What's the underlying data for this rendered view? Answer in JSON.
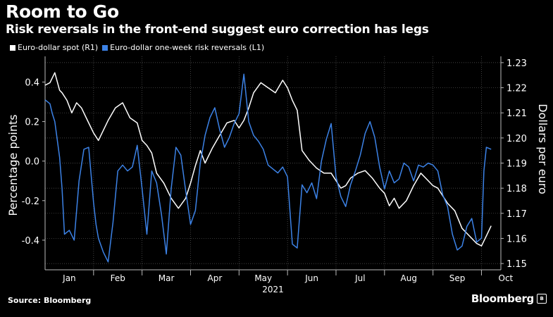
{
  "header": {
    "title": "Room to Go",
    "subtitle": "Risk reversals in the front-end suggest euro correction has legs"
  },
  "footer": {
    "source": "Source: Bloomberg",
    "brand": "Bloomberg"
  },
  "chart_data": {
    "type": "line",
    "title": "Room to Go",
    "subtitle": "Risk reversals in the front-end suggest euro correction has legs",
    "ylabel_left": "Percentage points",
    "ylabel_right": "Dollars per euro",
    "xlabel": "2021",
    "grid": true,
    "legend_position": "top-left",
    "x_range": [
      0,
      9.4
    ],
    "y_left": {
      "range": [
        -0.55,
        0.53
      ],
      "ticks": [
        -0.4,
        -0.2,
        0.0,
        0.2,
        0.4
      ],
      "tick_labels": [
        "-0.4",
        "-0.2",
        "0.0",
        "0.2",
        "0.4"
      ]
    },
    "y_right": {
      "range": [
        1.1475,
        1.2325
      ],
      "ticks": [
        1.15,
        1.16,
        1.17,
        1.18,
        1.19,
        1.2,
        1.21,
        1.22,
        1.23
      ],
      "tick_labels": [
        "1.15",
        "1.16",
        "1.17",
        "1.18",
        "1.19",
        "1.20",
        "1.21",
        "1.22",
        "1.23"
      ]
    },
    "months": [
      {
        "label": "Jan",
        "pos": 0.5
      },
      {
        "label": "Feb",
        "pos": 1.5
      },
      {
        "label": "Mar",
        "pos": 2.5
      },
      {
        "label": "Apr",
        "pos": 3.5
      },
      {
        "label": "May",
        "pos": 4.5
      },
      {
        "label": "Jun",
        "pos": 5.5
      },
      {
        "label": "Jul",
        "pos": 6.5
      },
      {
        "label": "Aug",
        "pos": 7.5
      },
      {
        "label": "Sep",
        "pos": 8.5
      },
      {
        "label": "Oct",
        "pos": 9.5
      }
    ],
    "month_boundaries": [
      1,
      2,
      3,
      4,
      5,
      6,
      7,
      8,
      9
    ],
    "series": [
      {
        "name": "Euro-dollar spot (R1)",
        "axis": "right",
        "color": "#ffffff",
        "x": [
          0,
          0.1,
          0.2,
          0.3,
          0.35,
          0.45,
          0.55,
          0.65,
          0.75,
          0.9,
          1.0,
          1.1,
          1.2,
          1.3,
          1.45,
          1.6,
          1.75,
          1.9,
          2.0,
          2.1,
          2.2,
          2.3,
          2.45,
          2.6,
          2.75,
          2.9,
          3.0,
          3.1,
          3.2,
          3.3,
          3.45,
          3.6,
          3.75,
          3.9,
          4.0,
          4.1,
          4.2,
          4.3,
          4.45,
          4.6,
          4.75,
          4.9,
          5.0,
          5.1,
          5.2,
          5.3,
          5.45,
          5.6,
          5.75,
          5.9,
          6.0,
          6.1,
          6.2,
          6.3,
          6.45,
          6.6,
          6.75,
          6.9,
          7.0,
          7.1,
          7.2,
          7.3,
          7.45,
          7.6,
          7.75,
          7.9,
          8.0,
          8.1,
          8.2,
          8.3,
          8.45,
          8.6,
          8.75,
          8.9,
          9.0,
          9.1,
          9.2
        ],
        "values": [
          1.221,
          1.222,
          1.226,
          1.219,
          1.218,
          1.215,
          1.21,
          1.214,
          1.212,
          1.206,
          1.202,
          1.199,
          1.203,
          1.207,
          1.212,
          1.214,
          1.208,
          1.206,
          1.199,
          1.197,
          1.194,
          1.186,
          1.182,
          1.176,
          1.172,
          1.176,
          1.182,
          1.189,
          1.195,
          1.19,
          1.196,
          1.201,
          1.206,
          1.207,
          1.204,
          1.207,
          1.212,
          1.218,
          1.222,
          1.22,
          1.218,
          1.223,
          1.22,
          1.215,
          1.211,
          1.195,
          1.191,
          1.188,
          1.186,
          1.186,
          1.183,
          1.18,
          1.181,
          1.184,
          1.186,
          1.187,
          1.184,
          1.18,
          1.178,
          1.173,
          1.176,
          1.172,
          1.175,
          1.181,
          1.186,
          1.183,
          1.181,
          1.18,
          1.177,
          1.174,
          1.171,
          1.164,
          1.161,
          1.158,
          1.157,
          1.161,
          1.165
        ]
      },
      {
        "name": "Euro-dollar one-week risk reversals (L1)",
        "axis": "left",
        "color": "#3c82e6",
        "x": [
          0,
          0.1,
          0.15,
          0.2,
          0.3,
          0.35,
          0.4,
          0.5,
          0.6,
          0.7,
          0.8,
          0.9,
          1.0,
          1.05,
          1.1,
          1.2,
          1.3,
          1.4,
          1.5,
          1.6,
          1.7,
          1.8,
          1.9,
          2.0,
          2.1,
          2.2,
          2.3,
          2.4,
          2.5,
          2.6,
          2.7,
          2.8,
          2.9,
          3.0,
          3.1,
          3.2,
          3.3,
          3.4,
          3.5,
          3.6,
          3.7,
          3.8,
          3.9,
          4.0,
          4.1,
          4.2,
          4.3,
          4.4,
          4.5,
          4.6,
          4.7,
          4.8,
          4.9,
          5.0,
          5.1,
          5.2,
          5.3,
          5.4,
          5.5,
          5.6,
          5.7,
          5.8,
          5.9,
          6.0,
          6.1,
          6.2,
          6.3,
          6.4,
          6.5,
          6.6,
          6.7,
          6.8,
          6.9,
          7.0,
          7.1,
          7.2,
          7.3,
          7.4,
          7.5,
          7.6,
          7.7,
          7.8,
          7.9,
          8.0,
          8.1,
          8.2,
          8.3,
          8.4,
          8.5,
          8.6,
          8.7,
          8.8,
          8.9,
          9.0,
          9.05,
          9.1,
          9.2
        ],
        "values": [
          0.31,
          0.29,
          0.24,
          0.2,
          0.02,
          -0.14,
          -0.37,
          -0.35,
          -0.4,
          -0.1,
          0.06,
          0.07,
          -0.21,
          -0.32,
          -0.39,
          -0.46,
          -0.51,
          -0.31,
          -0.05,
          -0.02,
          -0.05,
          -0.03,
          0.08,
          -0.14,
          -0.37,
          -0.05,
          -0.11,
          -0.27,
          -0.47,
          -0.14,
          0.07,
          0.03,
          -0.15,
          -0.32,
          -0.25,
          -0.01,
          0.13,
          0.22,
          0.27,
          0.16,
          0.07,
          0.12,
          0.19,
          0.24,
          0.44,
          0.2,
          0.13,
          0.1,
          0.06,
          -0.02,
          -0.04,
          -0.06,
          -0.03,
          -0.08,
          -0.42,
          -0.44,
          -0.12,
          -0.16,
          -0.11,
          -0.19,
          0.0,
          0.11,
          0.19,
          -0.08,
          -0.18,
          -0.23,
          -0.12,
          -0.05,
          0.03,
          0.14,
          0.2,
          0.12,
          -0.03,
          -0.14,
          -0.05,
          -0.11,
          -0.09,
          -0.01,
          -0.03,
          -0.1,
          -0.02,
          -0.03,
          -0.01,
          -0.02,
          -0.05,
          -0.17,
          -0.23,
          -0.37,
          -0.45,
          -0.43,
          -0.33,
          -0.29,
          -0.41,
          -0.39,
          -0.05,
          0.07,
          0.06
        ]
      }
    ]
  }
}
